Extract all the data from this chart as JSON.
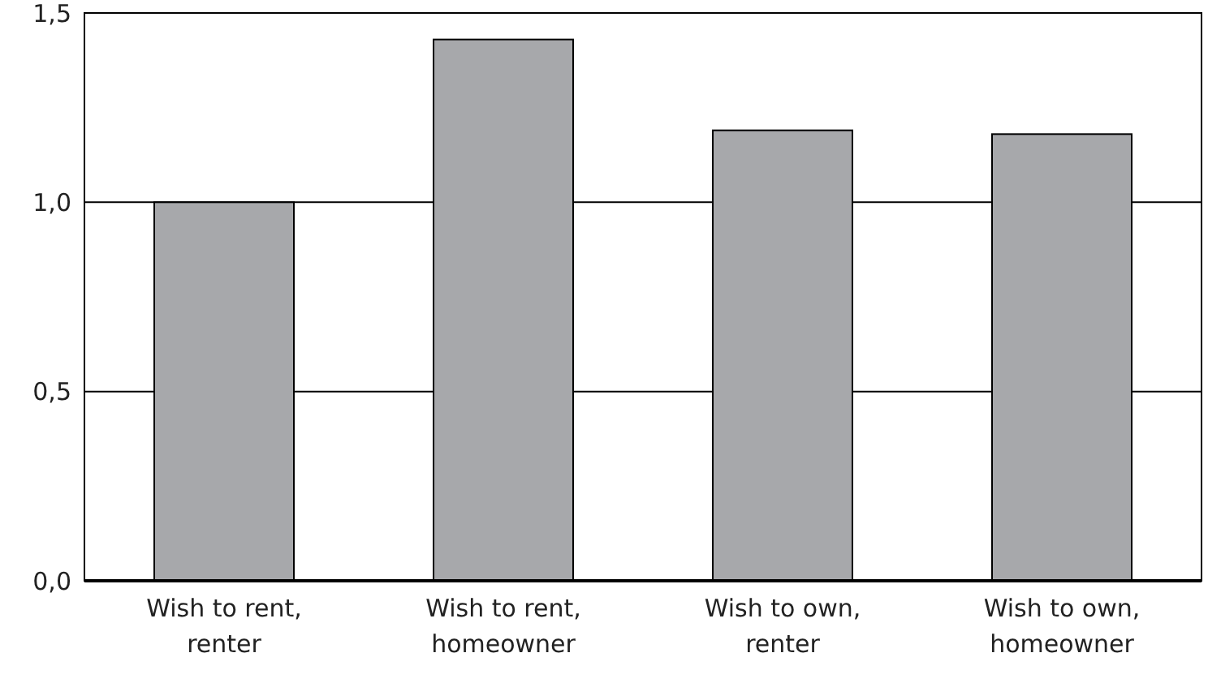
{
  "chart_data": {
    "type": "bar",
    "categories": [
      "Wish to rent, renter",
      "Wish to rent, homeowner",
      "Wish to own, renter",
      "Wish to own, homeowner"
    ],
    "values": [
      1.0,
      1.43,
      1.19,
      1.18
    ],
    "color": "#a7a8ab",
    "ylim": [
      0,
      1.5
    ],
    "yticks": [
      {
        "value": 0,
        "label": "0,0"
      },
      {
        "value": 0.5,
        "label": "0,5"
      },
      {
        "value": 1,
        "label": "1,0"
      },
      {
        "value": 1.5,
        "label": "1,5"
      }
    ],
    "grid": "y"
  }
}
